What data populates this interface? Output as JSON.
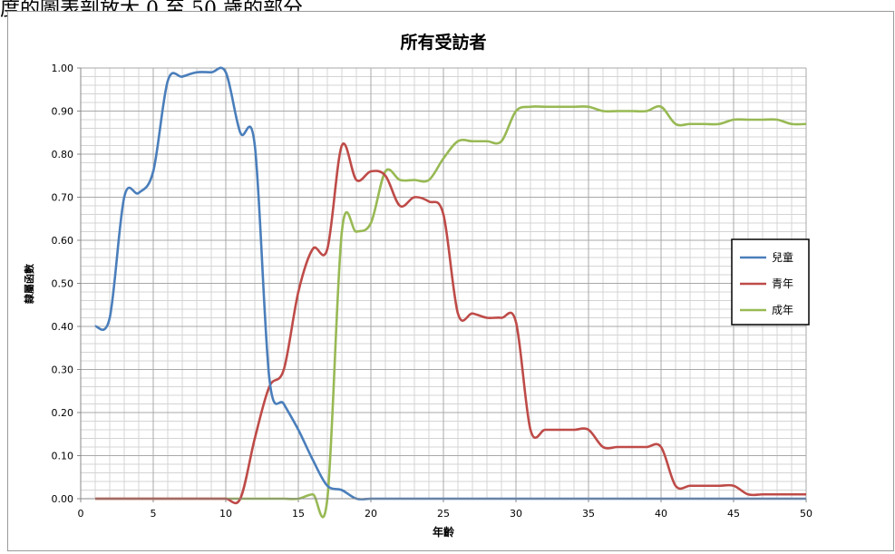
{
  "caption": "度的圖表剖放大 0 至 50 歲的部分",
  "chart_data": {
    "type": "line",
    "title": "所有受訪者",
    "xlabel": "年齡",
    "ylabel": "隸屬函數",
    "xlim": [
      0,
      50
    ],
    "ylim": [
      0,
      1
    ],
    "x_ticks": [
      "0",
      "5",
      "10",
      "15",
      "20",
      "25",
      "30",
      "35",
      "40",
      "45",
      "50"
    ],
    "y_ticks": [
      "0.00",
      "0.10",
      "0.20",
      "0.30",
      "0.40",
      "0.50",
      "0.60",
      "0.70",
      "0.80",
      "0.90",
      "1.00"
    ],
    "grid": true,
    "legend_position": "right",
    "x": [
      1,
      2,
      3,
      4,
      5,
      6,
      7,
      8,
      9,
      10,
      11,
      12,
      13,
      14,
      15,
      16,
      17,
      18,
      19,
      20,
      21,
      22,
      23,
      24,
      25,
      26,
      27,
      28,
      29,
      30,
      31,
      32,
      33,
      34,
      35,
      36,
      37,
      38,
      39,
      40,
      41,
      42,
      43,
      44,
      45,
      46,
      47,
      48,
      49,
      50
    ],
    "series": [
      {
        "name": "兒童",
        "color": "#4a7ebb",
        "values": [
          0.4,
          0.42,
          0.7,
          0.71,
          0.76,
          0.97,
          0.98,
          0.99,
          0.99,
          0.99,
          0.85,
          0.82,
          0.28,
          0.22,
          0.16,
          0.09,
          0.03,
          0.02,
          0.0,
          0.0,
          0.0,
          0.0,
          0.0,
          0.0,
          0.0,
          0.0,
          0.0,
          0.0,
          0.0,
          0.0,
          0.0,
          0.0,
          0.0,
          0.0,
          0.0,
          0.0,
          0.0,
          0.0,
          0.0,
          0.0,
          0.0,
          0.0,
          0.0,
          0.0,
          0.0,
          0.0,
          0.0,
          0.0,
          0.0,
          0.0
        ]
      },
      {
        "name": "青年",
        "color": "#be4b48",
        "values": [
          0.0,
          0.0,
          0.0,
          0.0,
          0.0,
          0.0,
          0.0,
          0.0,
          0.0,
          0.0,
          0.0,
          0.14,
          0.26,
          0.3,
          0.48,
          0.58,
          0.58,
          0.82,
          0.74,
          0.76,
          0.75,
          0.68,
          0.7,
          0.69,
          0.66,
          0.43,
          0.43,
          0.42,
          0.42,
          0.41,
          0.16,
          0.16,
          0.16,
          0.16,
          0.16,
          0.12,
          0.12,
          0.12,
          0.12,
          0.12,
          0.03,
          0.03,
          0.03,
          0.03,
          0.03,
          0.01,
          0.01,
          0.01,
          0.01,
          0.01
        ]
      },
      {
        "name": "成年",
        "color": "#98b954",
        "values": [
          0.0,
          0.0,
          0.0,
          0.0,
          0.0,
          0.0,
          0.0,
          0.0,
          0.0,
          0.0,
          0.0,
          0.0,
          0.0,
          0.0,
          0.0,
          0.01,
          0.0,
          0.62,
          0.62,
          0.64,
          0.76,
          0.74,
          0.74,
          0.74,
          0.79,
          0.83,
          0.83,
          0.83,
          0.83,
          0.9,
          0.91,
          0.91,
          0.91,
          0.91,
          0.91,
          0.9,
          0.9,
          0.9,
          0.9,
          0.91,
          0.87,
          0.87,
          0.87,
          0.87,
          0.88,
          0.88,
          0.88,
          0.88,
          0.87,
          0.87
        ]
      }
    ]
  }
}
